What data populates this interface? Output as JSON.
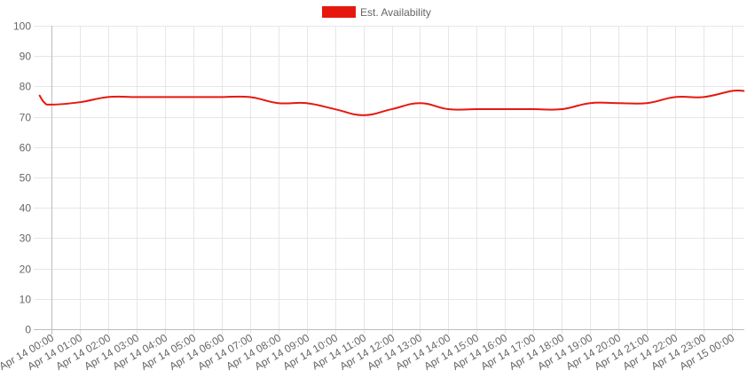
{
  "chart_data": {
    "type": "line",
    "title": "",
    "xlabel": "",
    "ylabel": "",
    "ylim": [
      0,
      100
    ],
    "y_ticks": [
      0,
      10,
      20,
      30,
      40,
      50,
      60,
      70,
      80,
      90,
      100
    ],
    "grid": true,
    "legend_position": "top-center",
    "x_ticks": [
      "Apr 14 00:00",
      "Apr 14 01:00",
      "Apr 14 02:00",
      "Apr 14 03:00",
      "Apr 14 04:00",
      "Apr 14 05:00",
      "Apr 14 06:00",
      "Apr 14 07:00",
      "Apr 14 08:00",
      "Apr 14 09:00",
      "Apr 14 10:00",
      "Apr 14 11:00",
      "Apr 14 12:00",
      "Apr 14 13:00",
      "Apr 14 14:00",
      "Apr 14 15:00",
      "Apr 14 16:00",
      "Apr 14 17:00",
      "Apr 14 18:00",
      "Apr 14 19:00",
      "Apr 14 20:00",
      "Apr 14 21:00",
      "Apr 14 22:00",
      "Apr 14 23:00",
      "Apr 15 00:00"
    ],
    "x_range": [
      "Apr 13 23:35",
      "Apr 15 00:25"
    ],
    "series": [
      {
        "name": "Est. Availability",
        "color": "#e6180e",
        "points": [
          {
            "x": "Apr 13 23:35",
            "y": 77
          },
          {
            "x": "Apr 13 23:45",
            "y": 74.7
          },
          {
            "x": "Apr 14 00:00",
            "y": 74
          },
          {
            "x": "Apr 14 01:00",
            "y": 74.8
          },
          {
            "x": "Apr 14 02:00",
            "y": 76.5
          },
          {
            "x": "Apr 14 03:00",
            "y": 76.5
          },
          {
            "x": "Apr 14 04:00",
            "y": 76.5
          },
          {
            "x": "Apr 14 05:00",
            "y": 76.5
          },
          {
            "x": "Apr 14 06:00",
            "y": 76.5
          },
          {
            "x": "Apr 14 07:00",
            "y": 76.5
          },
          {
            "x": "Apr 14 08:00",
            "y": 74.5
          },
          {
            "x": "Apr 14 09:00",
            "y": 74.5
          },
          {
            "x": "Apr 14 10:00",
            "y": 72.5
          },
          {
            "x": "Apr 14 11:00",
            "y": 70.5
          },
          {
            "x": "Apr 14 12:00",
            "y": 72.5
          },
          {
            "x": "Apr 14 13:00",
            "y": 74.5
          },
          {
            "x": "Apr 14 14:00",
            "y": 72.5
          },
          {
            "x": "Apr 14 15:00",
            "y": 72.5
          },
          {
            "x": "Apr 14 16:00",
            "y": 72.5
          },
          {
            "x": "Apr 14 17:00",
            "y": 72.5
          },
          {
            "x": "Apr 14 18:00",
            "y": 72.5
          },
          {
            "x": "Apr 14 19:00",
            "y": 74.5
          },
          {
            "x": "Apr 14 20:00",
            "y": 74.5
          },
          {
            "x": "Apr 14 21:00",
            "y": 74.5
          },
          {
            "x": "Apr 14 22:00",
            "y": 76.5
          },
          {
            "x": "Apr 14 23:00",
            "y": 76.5
          },
          {
            "x": "Apr 15 00:00",
            "y": 78.5
          },
          {
            "x": "Apr 15 00:25",
            "y": 78.5
          }
        ]
      }
    ]
  }
}
